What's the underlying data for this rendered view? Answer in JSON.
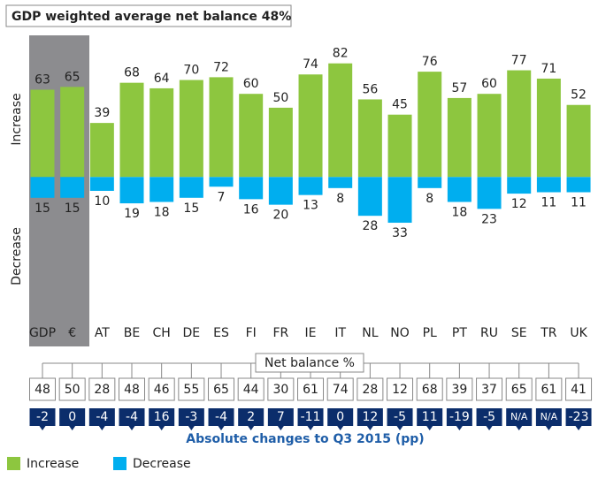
{
  "chart_data": {
    "type": "bar",
    "title": "GDP weighted average net balance 48%",
    "y_labels": [
      "Increase",
      "Decrease"
    ],
    "categories": [
      "GDP",
      "€",
      "AT",
      "BE",
      "CH",
      "DE",
      "ES",
      "FI",
      "FR",
      "IE",
      "IT",
      "NL",
      "NO",
      "PL",
      "PT",
      "RU",
      "SE",
      "TR",
      "UK"
    ],
    "series": [
      {
        "name": "Increase",
        "color": "#8dc63f",
        "values": [
          63,
          65,
          39,
          68,
          64,
          70,
          72,
          60,
          50,
          74,
          82,
          56,
          45,
          76,
          57,
          60,
          77,
          71,
          52
        ]
      },
      {
        "name": "Decrease",
        "color": "#00aeef",
        "values": [
          15,
          15,
          10,
          19,
          18,
          15,
          7,
          16,
          20,
          13,
          8,
          28,
          33,
          8,
          18,
          23,
          12,
          11,
          11
        ]
      }
    ],
    "ylim": [
      -40,
      85
    ],
    "net_balance": {
      "label": "Net balance %",
      "values": [
        48,
        50,
        28,
        48,
        46,
        55,
        65,
        44,
        30,
        61,
        74,
        28,
        12,
        68,
        39,
        37,
        65,
        61,
        41
      ]
    },
    "changes": {
      "label": "Absolute changes to Q3 2015 (pp)",
      "color": "#0b2d6b",
      "values": [
        -2,
        0,
        -4,
        -4,
        16,
        -3,
        -4,
        2,
        7,
        -11,
        0,
        12,
        -5,
        11,
        -19,
        -5,
        "N/A",
        "N/A",
        -23
      ]
    }
  }
}
